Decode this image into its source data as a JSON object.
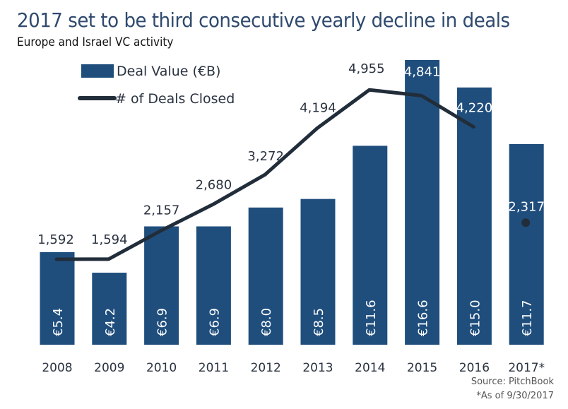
{
  "header": {
    "title": "2017 set to be third consecutive yearly decline in deals",
    "subtitle": "Europe and Israel VC activity"
  },
  "footer": {
    "source": "Source: PitchBook",
    "note": "*As of 9/30/2017"
  },
  "colors": {
    "bar": "#1f4e7d",
    "line": "#222d3a",
    "text": "#2a3340",
    "bar_label": "#ffffff"
  },
  "chart_data": {
    "type": "bar",
    "title": "2017 set to be third consecutive yearly decline in deals",
    "subtitle": "Europe and Israel VC activity",
    "categories": [
      "2008",
      "2009",
      "2010",
      "2011",
      "2012",
      "2013",
      "2014",
      "2015",
      "2016",
      "2017*"
    ],
    "series": [
      {
        "name": "Deal Value  (€B)",
        "type": "bar",
        "values": [
          5.4,
          4.2,
          6.9,
          6.9,
          8.0,
          8.5,
          11.6,
          16.6,
          15.0,
          11.7
        ],
        "labels": [
          "€5.4",
          "€4.2",
          "€6.9",
          "€6.9",
          "€8.0",
          "€8.5",
          "€11.6",
          "€16.6",
          "€15.0",
          "€11.7"
        ]
      },
      {
        "name": "# of Deals Closed",
        "type": "line",
        "values": [
          1592,
          1594,
          2157,
          2680,
          3272,
          4194,
          4955,
          4841,
          4220,
          2317
        ],
        "labels": [
          "1,592",
          "1,594",
          "2,157",
          "2,680",
          "3,272",
          "4,194",
          "4,955",
          "4,841",
          "4,220",
          "2,317"
        ],
        "note": "2017 value shown as separate point (partial year)"
      }
    ],
    "legend": {
      "position": "top-left"
    },
    "grid": false,
    "xlabel": "",
    "ylabel": "",
    "ylim_bars": [
      0,
      17.5
    ],
    "ylim_line": [
      0,
      6200
    ]
  }
}
